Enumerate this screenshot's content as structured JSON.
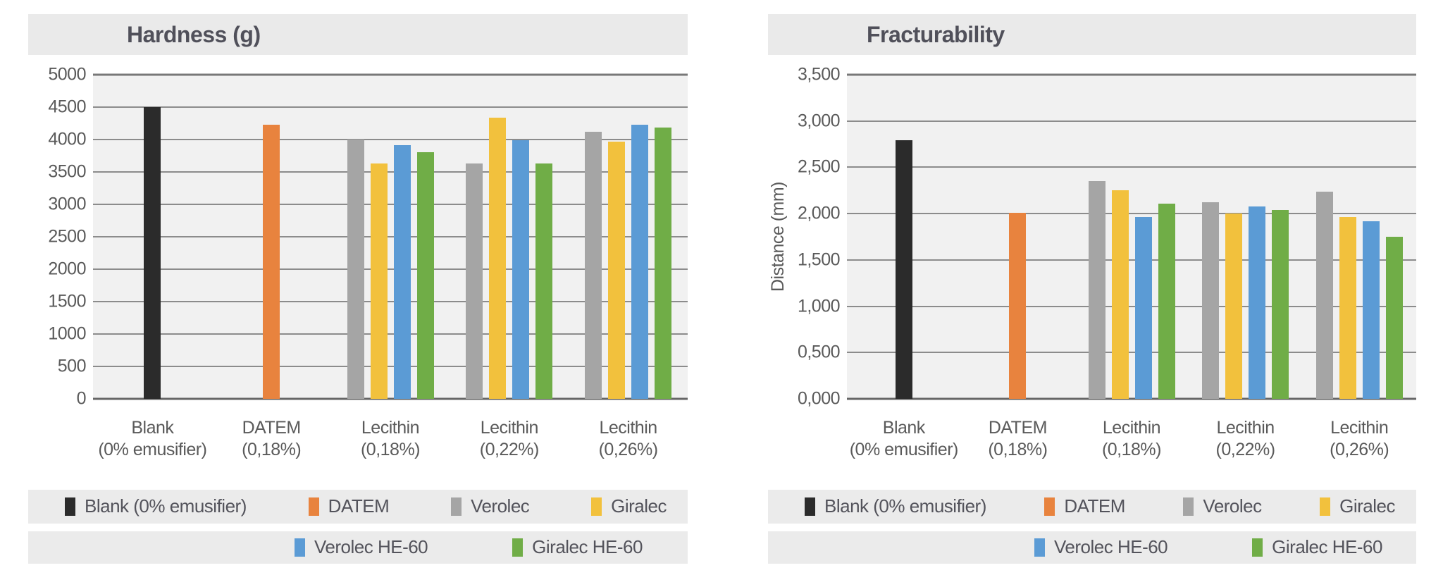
{
  "palette": {
    "plot_background": "#f1f1f1",
    "band_background": "#eaeaea",
    "legend_background": "#ebebeb",
    "gridline": "#8c8c8c",
    "baseline": "#666666",
    "text": "#55555c"
  },
  "series": [
    {
      "name": "Blank (0% emusifier)",
      "color": "#2b2b2b"
    },
    {
      "name": "DATEM",
      "color": "#e8833e"
    },
    {
      "name": "Verolec",
      "color": "#a5a5a5"
    },
    {
      "name": "Giralec",
      "color": "#f2c13d"
    },
    {
      "name": "Verolec HE-60",
      "color": "#5b9bd5"
    },
    {
      "name": "Giralec HE-60",
      "color": "#70ad47"
    }
  ],
  "legend": {
    "row1": [
      "Blank (0% emusifier)",
      "DATEM",
      "Verolec",
      "Giralec"
    ],
    "row2": [
      "Verolec HE-60",
      "Giralec HE-60"
    ]
  },
  "chart_data": [
    {
      "type": "bar",
      "title": "Hardness (g)",
      "xlabel": "",
      "ylabel": "",
      "ylim": [
        0,
        5000
      ],
      "ytick_step": 500,
      "grid": true,
      "legend_position": "bottom",
      "ytick_labels": [
        "5000",
        "4500",
        "4000",
        "3500",
        "3000",
        "2500",
        "2000",
        "1500",
        "1000",
        "500",
        "0"
      ],
      "categories": [
        [
          "Blank",
          "(0% emusifier)"
        ],
        [
          "DATEM",
          "(0,18%)"
        ],
        [
          "Lecithin",
          "(0,18%)"
        ],
        [
          "Lecithin",
          "(0,22%)"
        ],
        [
          "Lecithin",
          "(0,26%)"
        ]
      ],
      "series": [
        {
          "name": "Blank (0% emusifier)",
          "values": [
            4500,
            null,
            null,
            null,
            null
          ]
        },
        {
          "name": "DATEM",
          "values": [
            null,
            4230,
            null,
            null,
            null
          ]
        },
        {
          "name": "Verolec",
          "values": [
            null,
            null,
            4000,
            3630,
            4120
          ]
        },
        {
          "name": "Giralec",
          "values": [
            null,
            null,
            3630,
            4340,
            3970
          ]
        },
        {
          "name": "Verolec HE-60",
          "values": [
            null,
            null,
            3910,
            3990,
            4230
          ]
        },
        {
          "name": "Giralec HE-60",
          "values": [
            null,
            null,
            3800,
            3630,
            4190
          ]
        }
      ]
    },
    {
      "type": "bar",
      "title": "Fracturability",
      "xlabel": "",
      "ylabel": "Distance (mm)",
      "ylim": [
        0,
        3.5
      ],
      "ytick_step": 0.5,
      "grid": true,
      "legend_position": "bottom",
      "ytick_labels": [
        "3,500",
        "3,000",
        "2,500",
        "2,000",
        "1,500",
        "1,000",
        "0,500",
        "0,000"
      ],
      "categories": [
        [
          "Blank",
          "(0% emusifier)"
        ],
        [
          "DATEM",
          "(0,18%)"
        ],
        [
          "Lecithin",
          "(0,18%)"
        ],
        [
          "Lecithin",
          "(0,22%)"
        ],
        [
          "Lecithin",
          "(0,26%)"
        ]
      ],
      "series": [
        {
          "name": "Blank (0% emusifier)",
          "values": [
            2.79,
            null,
            null,
            null,
            null
          ]
        },
        {
          "name": "DATEM",
          "values": [
            null,
            2.01,
            null,
            null,
            null
          ]
        },
        {
          "name": "Verolec",
          "values": [
            null,
            null,
            2.35,
            2.12,
            2.24
          ]
        },
        {
          "name": "Giralec",
          "values": [
            null,
            null,
            2.25,
            2.0,
            1.96
          ]
        },
        {
          "name": "Verolec HE-60",
          "values": [
            null,
            null,
            1.96,
            2.08,
            1.92
          ]
        },
        {
          "name": "Giralec HE-60",
          "values": [
            null,
            null,
            2.11,
            2.04,
            1.75
          ]
        }
      ]
    }
  ]
}
